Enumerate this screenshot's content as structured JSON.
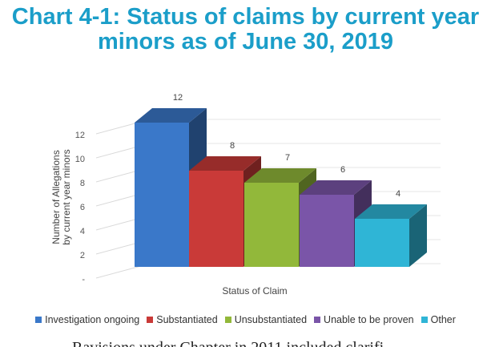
{
  "chart_data": {
    "type": "bar",
    "title": "Chart 4-1: Status of claims by current year minors as of June 30, 2019",
    "xlabel": "Status of Claim",
    "ylabel": "Number of Allegations by current year minors",
    "categories": [
      "Investigation ongoing",
      "Substantiated",
      "Unsubstantiated",
      "Unable to be proven",
      "Other"
    ],
    "values": [
      12,
      8,
      7,
      6,
      4
    ],
    "colors": [
      "#3a78c9",
      "#c93a38",
      "#92b83a",
      "#7a55a8",
      "#2fb5d6"
    ],
    "yticks": [
      "-",
      "2",
      "4",
      "6",
      "8",
      "10",
      "12"
    ],
    "ylim": [
      0,
      12
    ],
    "grid": true,
    "legend": "bottom",
    "style": "3d"
  },
  "footer_text": "Ravisions under Chapter in 2011 included clarifi"
}
